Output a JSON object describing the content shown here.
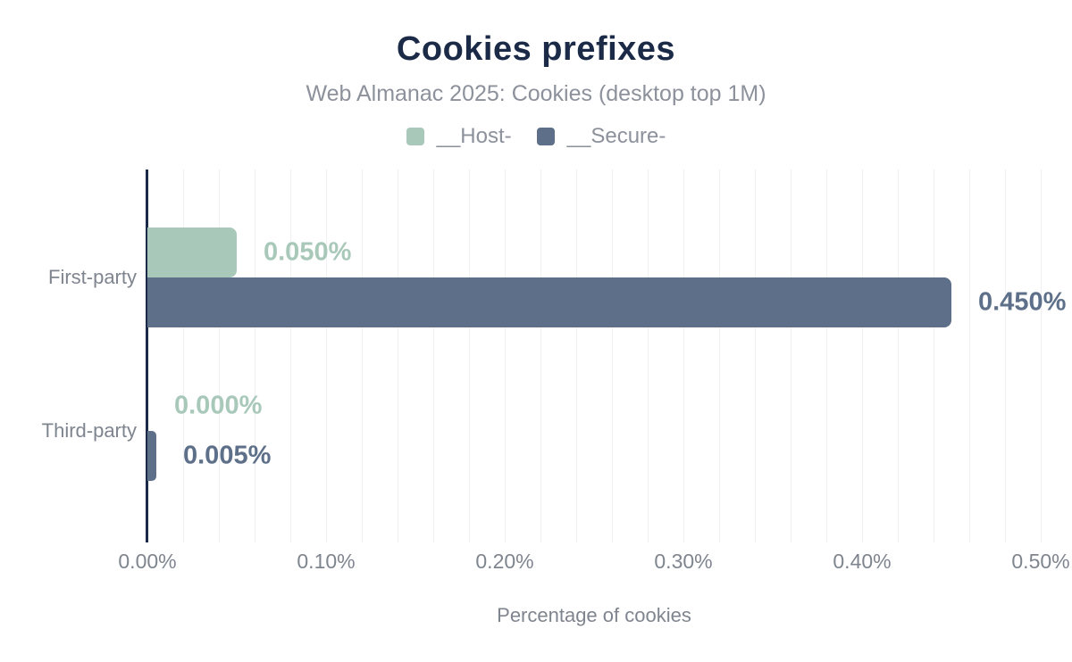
{
  "header": {
    "title": "Cookies prefixes",
    "subtitle": "Web Almanac 2025: Cookies (desktop top 1M)"
  },
  "legend": [
    {
      "label": "__Host-",
      "color": "#a8c8ba"
    },
    {
      "label": "__Secure-",
      "color": "#5e7089"
    }
  ],
  "chart_data": {
    "type": "bar",
    "orientation": "horizontal",
    "title": "Cookies prefixes",
    "subtitle": "Web Almanac 2025: Cookies (desktop top 1M)",
    "categories": [
      "First-party",
      "Third-party"
    ],
    "series": [
      {
        "name": "__Host-",
        "color": "#a8c8ba",
        "values": [
          0.05,
          0.0
        ],
        "labels": [
          "0.050%",
          "0.000%"
        ]
      },
      {
        "name": "__Secure-",
        "color": "#5e7089",
        "values": [
          0.45,
          0.005
        ],
        "labels": [
          "0.450%",
          "0.005%"
        ]
      }
    ],
    "xlabel": "Percentage of cookies",
    "ylabel": "",
    "x_ticks": [
      "0.00%",
      "0.10%",
      "0.20%",
      "0.30%",
      "0.40%",
      "0.50%"
    ],
    "xlim": [
      0,
      0.5
    ],
    "tick_step": 0.1,
    "minor_grid_step": 0.02,
    "grid": "vertical-minor",
    "legend_position": "top"
  },
  "colors": {
    "title": "#1b2a47",
    "axis_line": "#1b2a47",
    "subtitle_text": "#8c919b",
    "axis_text": "#7f858f",
    "gridline": "#f1f1f4",
    "background": "#ffffff"
  }
}
